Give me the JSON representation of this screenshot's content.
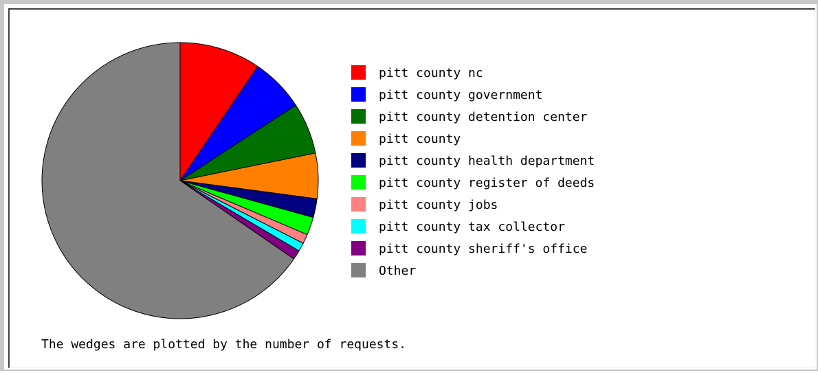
{
  "chart_data": {
    "type": "pie",
    "categories": [
      "pitt county nc",
      "pitt county government",
      "pitt county detention center",
      "pitt county",
      "pitt county health department",
      "pitt county register of deeds",
      "pitt county jobs",
      "pitt county tax collector",
      "pitt county sheriff's office",
      "Other"
    ],
    "values": [
      9.5,
      6.3,
      6.0,
      5.3,
      2.2,
      2.1,
      1.1,
      1.0,
      1.1,
      65.4
    ],
    "colors": [
      "#ff0000",
      "#0000ff",
      "#007000",
      "#ff8000",
      "#000080",
      "#00ff00",
      "#ff8080",
      "#00ffff",
      "#800080",
      "#808080"
    ],
    "legend_placement": "right"
  },
  "caption": "The wedges are plotted by the number of requests."
}
